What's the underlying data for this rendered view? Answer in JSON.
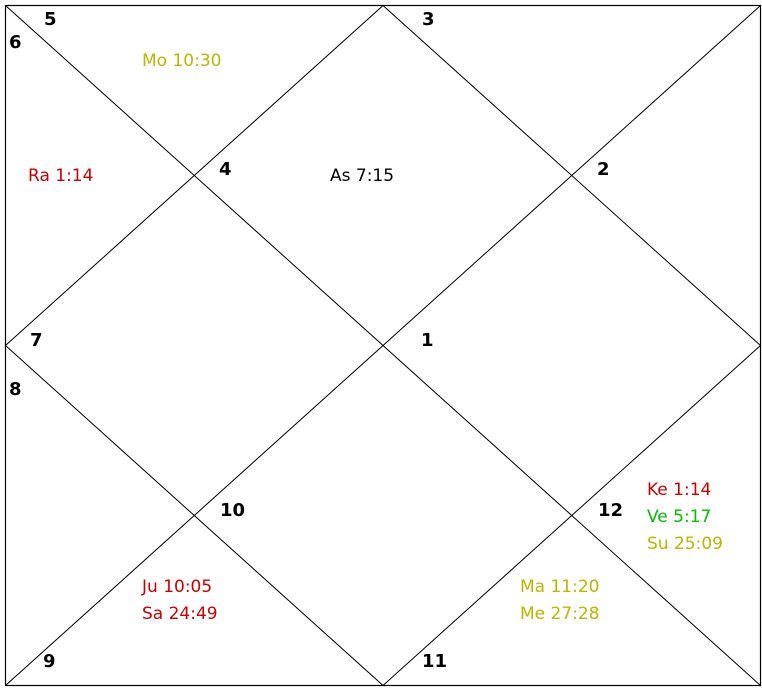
{
  "colors": {
    "yellow": "#b8b800",
    "red": "#cc0000",
    "green": "#00c000",
    "black": "#000000"
  },
  "houses": {
    "h1": "1",
    "h2": "2",
    "h3": "3",
    "h4": "4",
    "h5": "5",
    "h6": "6",
    "h7": "7",
    "h8": "8",
    "h9": "9",
    "h10": "10",
    "h11": "11",
    "h12": "12"
  },
  "planets": {
    "moon": {
      "label": "Mo 10:30",
      "color": "yellow"
    },
    "rahu": {
      "label": "Ra 1:14",
      "color": "red"
    },
    "ascendant": {
      "label": "As 7:15",
      "color": "black"
    },
    "ketu": {
      "label": "Ke 1:14",
      "color": "red"
    },
    "venus": {
      "label": "Ve 5:17",
      "color": "green"
    },
    "sun": {
      "label": "Su 25:09",
      "color": "yellow"
    },
    "mars": {
      "label": "Ma 11:20",
      "color": "yellow"
    },
    "mercury": {
      "label": "Me 27:28",
      "color": "yellow"
    },
    "jupiter": {
      "label": "Ju 10:05",
      "color": "red"
    },
    "saturn": {
      "label": "Sa 24:49",
      "color": "red"
    }
  }
}
